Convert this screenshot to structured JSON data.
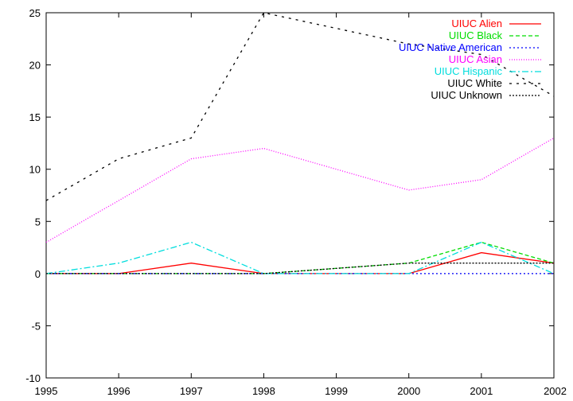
{
  "chart_data": {
    "type": "line",
    "title": "",
    "xlabel": "",
    "ylabel": "",
    "x": [
      1995,
      1996,
      1997,
      1998,
      1999,
      2000,
      2001,
      2002
    ],
    "xlim": [
      1995,
      2002
    ],
    "ylim": [
      -10,
      25
    ],
    "x_ticks": [
      "1995",
      "1996",
      "1997",
      "1998",
      "1999",
      "2000",
      "2001",
      "2002"
    ],
    "y_ticks": [
      "-10",
      "-5",
      "0",
      "5",
      "10",
      "15",
      "20",
      "25"
    ],
    "grid": false,
    "legend_position": "top-right",
    "series": [
      {
        "name": "UIUC Alien",
        "color": "#ff0000",
        "dash": "",
        "values": [
          0,
          0,
          1,
          0,
          null,
          0,
          2,
          1
        ]
      },
      {
        "name": "UIUC Black",
        "color": "#00dd00",
        "dash": "5,3",
        "values": [
          0,
          0,
          0,
          0,
          null,
          1,
          3,
          1
        ]
      },
      {
        "name": "UIUC Native American",
        "color": "#0000ff",
        "dash": "2,3",
        "values": [
          0,
          0,
          0,
          0,
          null,
          0,
          0,
          0
        ]
      },
      {
        "name": "UIUC Asian",
        "color": "#ff00ff",
        "dash": "1,2",
        "values": [
          3,
          7,
          11,
          12,
          null,
          8,
          9,
          13
        ]
      },
      {
        "name": "UIUC Hispanic",
        "color": "#00dddd",
        "dash": "8,3,2,3",
        "values": [
          0,
          1,
          3,
          0,
          null,
          0,
          3,
          0
        ]
      },
      {
        "name": "UIUC White",
        "color": "#000000",
        "dash": "3,6",
        "values": [
          7,
          11,
          13,
          25,
          null,
          22,
          21,
          17
        ]
      },
      {
        "name": "UIUC Unknown",
        "color": "#000000",
        "dash": "2,2",
        "values": [
          0,
          0,
          0,
          0,
          null,
          1,
          1,
          1
        ]
      }
    ]
  }
}
